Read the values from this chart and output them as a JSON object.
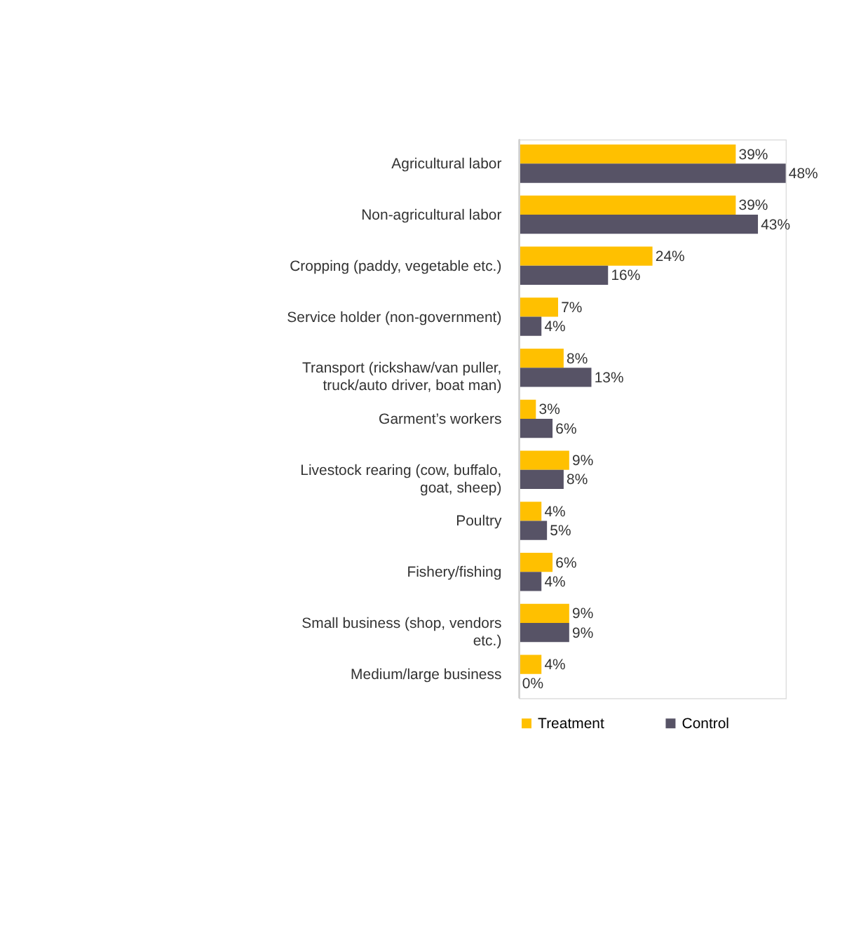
{
  "chart_data": {
    "type": "bar",
    "orientation": "horizontal",
    "legend": "bottom",
    "categories": [
      "Agricultural labor",
      "Non-agricultural labor",
      "Cropping (paddy, vegetable etc.)",
      "Service holder (non-government)",
      "Transport (rickshaw/van puller, truck/auto driver, boat man)",
      "Garment’s workers",
      "Livestock rearing (cow, buffalo, goat, sheep)",
      "Poultry",
      "Fishery/fishing",
      "Small business (shop, vendors etc.)",
      "Medium/large business"
    ],
    "series": [
      {
        "name": "Treatment",
        "color": "#ffc000",
        "values": [
          39,
          39,
          24,
          7,
          8,
          3,
          9,
          4,
          6,
          9,
          4
        ],
        "value_labels": [
          "39%",
          "39%",
          "24%",
          "7%",
          "8%",
          "3%",
          "9%",
          "4%",
          "6%",
          "9%",
          "4%"
        ]
      },
      {
        "name": "Control",
        "color": "#575366",
        "values": [
          48,
          43,
          16,
          4,
          13,
          6,
          8,
          5,
          4,
          9,
          0
        ],
        "value_labels": [
          "48%",
          "43%",
          "16%",
          "4%",
          "13%",
          "6%",
          "8%",
          "5%",
          "4%",
          "9%",
          "0%"
        ]
      }
    ]
  }
}
